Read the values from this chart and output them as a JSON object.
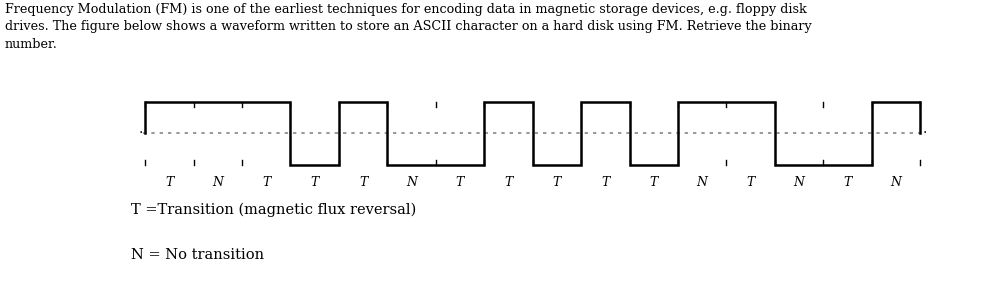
{
  "title_text": "Frequency Modulation (FM) is one of the earliest techniques for encoding data in magnetic storage devices, e.g. floppy disk\ndrives. The figure below shows a waveform written to store an ASCII character on a hard disk using FM. Retrieve the binary\nnumber.",
  "legend1": "T =Transition (magnetic flux reversal)",
  "legend2": "N = No transition",
  "labels": [
    "T",
    "N",
    "T",
    "T",
    "T",
    "N",
    "T",
    "T",
    "T",
    "T",
    "T",
    "N",
    "T",
    "N",
    "T",
    "N"
  ],
  "waveform_color": "#000000",
  "dot_color": "#888888",
  "fig_bg": "#ffffff",
  "fig_width": 10.05,
  "fig_height": 2.88,
  "dpi": 100,
  "text_fontsize": 9.2,
  "legend_fontsize": 10.5
}
